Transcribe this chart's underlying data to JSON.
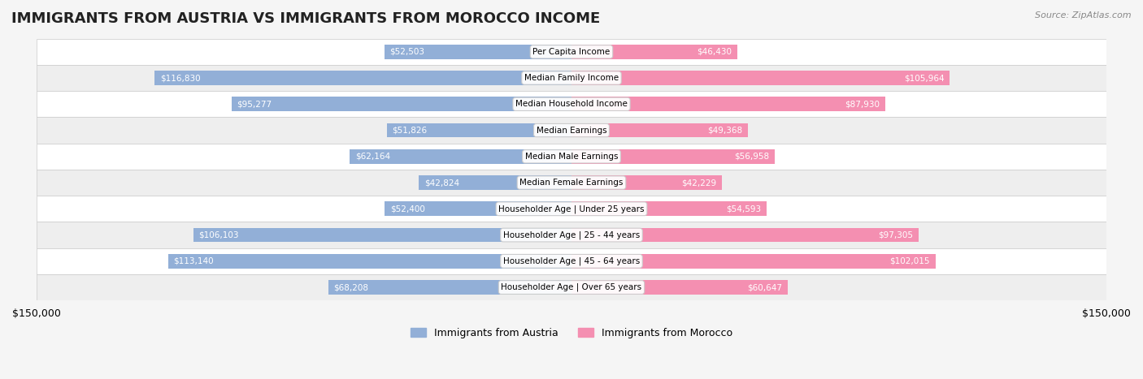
{
  "title": "IMMIGRANTS FROM AUSTRIA VS IMMIGRANTS FROM MOROCCO INCOME",
  "source": "Source: ZipAtlas.com",
  "categories": [
    "Per Capita Income",
    "Median Family Income",
    "Median Household Income",
    "Median Earnings",
    "Median Male Earnings",
    "Median Female Earnings",
    "Householder Age | Under 25 years",
    "Householder Age | 25 - 44 years",
    "Householder Age | 45 - 64 years",
    "Householder Age | Over 65 years"
  ],
  "austria_values": [
    52503,
    116830,
    95277,
    51826,
    62164,
    42824,
    52400,
    106103,
    113140,
    68208
  ],
  "morocco_values": [
    46430,
    105964,
    87930,
    49368,
    56958,
    42229,
    54593,
    97305,
    102015,
    60647
  ],
  "austria_labels": [
    "$52,503",
    "$116,830",
    "$95,277",
    "$51,826",
    "$62,164",
    "$42,824",
    "$52,400",
    "$106,103",
    "$113,140",
    "$68,208"
  ],
  "morocco_labels": [
    "$46,430",
    "$105,964",
    "$87,930",
    "$49,368",
    "$56,958",
    "$42,229",
    "$54,593",
    "$97,305",
    "$102,015",
    "$60,647"
  ],
  "austria_color": "#92afd7",
  "morocco_color": "#f48fb1",
  "austria_color_dark": "#6688bb",
  "morocco_color_dark": "#e06090",
  "austria_label_dark": [
    "#ffffff",
    "#ffffff",
    "#ffffff",
    "#555555",
    "#555555",
    "#555555",
    "#555555",
    "#ffffff",
    "#ffffff",
    "#555555"
  ],
  "morocco_label_dark": [
    "#555555",
    "#ffffff",
    "#555555",
    "#555555",
    "#555555",
    "#555555",
    "#555555",
    "#ffffff",
    "#ffffff",
    "#555555"
  ],
  "max_val": 150000,
  "bar_height": 0.55,
  "bg_color": "#f5f5f5",
  "row_bg_colors": [
    "#ffffff",
    "#eeeeee"
  ],
  "legend_austria": "Immigrants from Austria",
  "legend_morocco": "Immigrants from Morocco"
}
